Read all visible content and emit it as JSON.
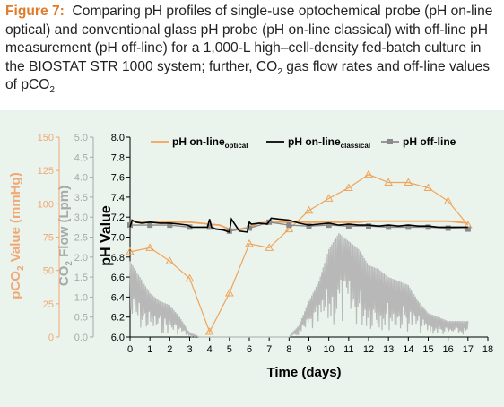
{
  "caption": {
    "figure_label": "Figure 7:",
    "text_main": "Comparing pH profiles of single-use optochemical probe (pH on-line optical) and conventional glass pH probe (pH on-line classical) with off-line pH measurement (pH off-line) for a 1,000-L high–cell-density fed-batch culture in the BIOSTAT STR 1000 system; further, CO",
    "sub1": "2",
    "text_mid": " gas flow rates and off-line values of pCO",
    "sub2": "2"
  },
  "colors": {
    "optical": "#f0a35a",
    "classical": "#000000",
    "offline": "#8a8a8a",
    "co2_flow": "#b8b8b8",
    "pco2_axis": "#f0a876",
    "co2_axis": "#a8a8a8",
    "panel_bg": "#eaf4ec"
  },
  "chart_data": {
    "type": "line",
    "xlabel": "Time (days)",
    "x_ticks": [
      "0",
      "1",
      "2",
      "3",
      "4",
      "5",
      "6",
      "7",
      "8",
      "9",
      "10",
      "11",
      "12",
      "13",
      "14",
      "15",
      "16",
      "17",
      "18"
    ],
    "xlim": [
      0,
      18
    ],
    "ylabel": "pH Value",
    "ylim": [
      6.0,
      8.0
    ],
    "y_ticks": [
      "6.0",
      "6.2",
      "6.4",
      "6.6",
      "6.8",
      "7.0",
      "7.2",
      "7.4",
      "7.6",
      "7.8",
      "8.0"
    ],
    "y2_label_main": "CO",
    "y2_label_sub": "2",
    "y2_label_rest": " Flow (Lpm)",
    "y2_lim": [
      0,
      5.0
    ],
    "y2_ticks": [
      "0.0",
      "0.5",
      "1.0",
      "1.5",
      "2.0",
      "2.5",
      "3.0",
      "3.5",
      "4.0",
      "4.5",
      "5.0"
    ],
    "y3_label_main": "pCO",
    "y3_label_sub": "2",
    "y3_label_rest": " Value (mmHg)",
    "y3_lim": [
      0,
      150
    ],
    "y3_ticks": [
      "0",
      "25",
      "50",
      "75",
      "100",
      "125",
      "150"
    ],
    "legend_position": "top",
    "legend": [
      {
        "main": "pH on-line",
        "sub": "optical"
      },
      {
        "main": "pH on-line",
        "sub": "classical"
      },
      {
        "main": "pH off-line",
        "sub": ""
      }
    ],
    "series": [
      {
        "key": "optical",
        "x": [
          0,
          0.5,
          1,
          1.5,
          2,
          2.5,
          3,
          3.5,
          4,
          4.5,
          5,
          5.5,
          6,
          6.5,
          7,
          7.5,
          8,
          8.5,
          9,
          9.5,
          10,
          10.5,
          11,
          11.5,
          12,
          12.5,
          13,
          13.5,
          14,
          14.5,
          15,
          15.5,
          16,
          16.5,
          17
        ],
        "y": [
          7.16,
          7.15,
          7.15,
          7.15,
          7.15,
          7.15,
          7.15,
          7.14,
          7.13,
          7.12,
          7.08,
          7.08,
          7.1,
          7.14,
          7.15,
          7.15,
          7.15,
          7.15,
          7.15,
          7.15,
          7.15,
          7.15,
          7.15,
          7.15,
          7.16,
          7.16,
          7.16,
          7.16,
          7.16,
          7.16,
          7.16,
          7.16,
          7.16,
          7.15,
          7.14
        ]
      },
      {
        "key": "classical",
        "x": [
          0,
          0.1,
          0.3,
          0.6,
          1,
          1.5,
          2,
          2.5,
          2.9,
          3.1,
          3.5,
          3.9,
          4.0,
          4.1,
          4.3,
          4.7,
          5.0,
          5.1,
          5.5,
          5.9,
          6.0,
          6.1,
          6.5,
          6.9,
          7.1,
          7.5,
          8,
          8.5,
          9,
          9.5,
          10,
          10.5,
          11,
          11.5,
          12,
          12.5,
          13,
          13.5,
          14,
          14.5,
          15,
          15.5,
          16,
          16.5,
          17
        ],
        "y": [
          7.1,
          7.17,
          7.15,
          7.14,
          7.15,
          7.14,
          7.14,
          7.13,
          7.12,
          7.1,
          7.1,
          7.1,
          7.18,
          7.1,
          7.08,
          7.07,
          7.05,
          7.18,
          7.06,
          7.05,
          7.15,
          7.13,
          7.14,
          7.13,
          7.19,
          7.18,
          7.17,
          7.14,
          7.12,
          7.13,
          7.14,
          7.12,
          7.13,
          7.12,
          7.12,
          7.11,
          7.12,
          7.11,
          7.12,
          7.11,
          7.11,
          7.1,
          7.1,
          7.1,
          7.1
        ]
      },
      {
        "key": "offline",
        "x": [
          0,
          1,
          2,
          3,
          4,
          5,
          6,
          7,
          8,
          9,
          10,
          11,
          12,
          13,
          14,
          15,
          16,
          17
        ],
        "y": [
          7.12,
          7.12,
          7.12,
          7.1,
          7.1,
          7.06,
          7.09,
          7.15,
          7.12,
          7.11,
          7.12,
          7.11,
          7.11,
          7.1,
          7.1,
          7.1,
          7.09,
          7.08
        ]
      },
      {
        "key": "pco2",
        "x": [
          0,
          1,
          2,
          3,
          4,
          5,
          6,
          7,
          8,
          9,
          10,
          11,
          12,
          13,
          14,
          15,
          16,
          17
        ],
        "y": [
          64,
          67,
          57,
          44,
          4,
          33,
          70,
          67,
          81,
          95,
          104,
          112,
          122,
          116,
          116,
          112,
          102,
          84
        ]
      },
      {
        "key": "co2_flow",
        "x": [
          0,
          0.5,
          1,
          1.5,
          2,
          2.5,
          3,
          3.5,
          4,
          4.5,
          5,
          5.5,
          6,
          6.5,
          7,
          7.5,
          8,
          8.5,
          9,
          9.5,
          10,
          10.5,
          11,
          11.5,
          12,
          12.5,
          13,
          13.5,
          14,
          14.5,
          15,
          15.5,
          16,
          16.5,
          17
        ],
        "y": [
          1.9,
          1.5,
          1.1,
          0.9,
          0.8,
          0.5,
          0.1,
          0.0,
          0.0,
          0.0,
          0.0,
          0.0,
          0.0,
          0.0,
          0.0,
          0.0,
          0.0,
          0.3,
          0.9,
          1.4,
          2.2,
          2.6,
          2.4,
          2.2,
          1.8,
          1.7,
          1.5,
          1.4,
          1.3,
          0.9,
          0.6,
          0.5,
          0.4,
          0.4,
          0.4
        ]
      }
    ]
  }
}
